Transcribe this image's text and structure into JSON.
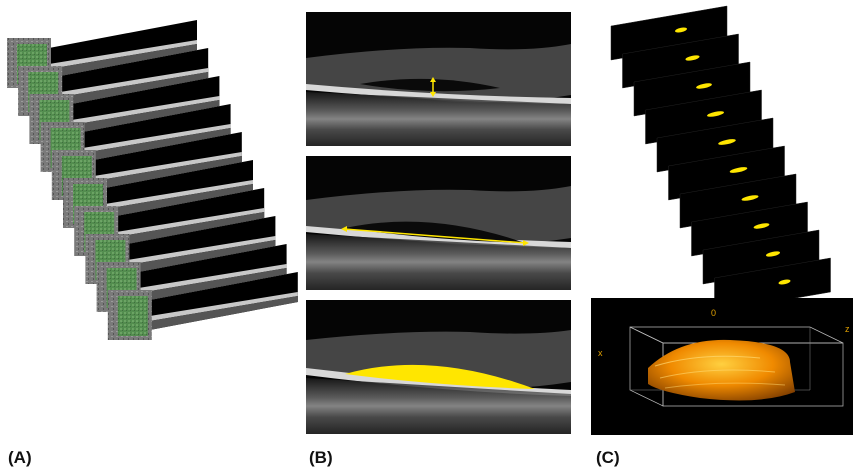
{
  "panels": {
    "a": {
      "label": "(A)",
      "slice_count": 10
    },
    "b": {
      "label": "(B)"
    },
    "c": {
      "label": "(C)",
      "slice_count": 10,
      "axes": {
        "origin": "0",
        "x": "x",
        "z": "z"
      }
    }
  },
  "colors": {
    "segmentation": "#ffe600",
    "volume": "#f08a00",
    "enface": "#4f8f4a",
    "background": "#000000"
  }
}
